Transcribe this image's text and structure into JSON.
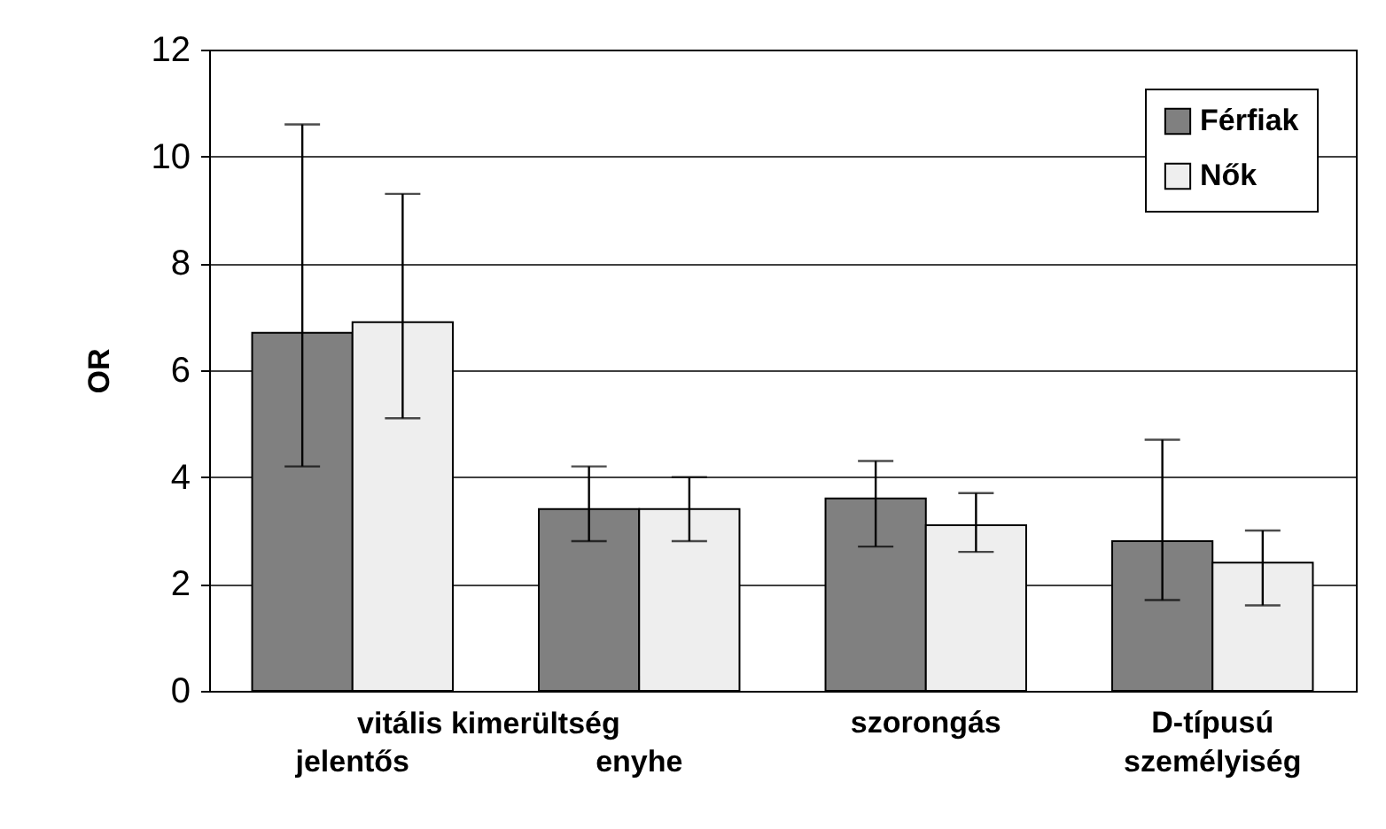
{
  "chart_data": {
    "type": "bar",
    "ylabel": "OR",
    "categories": [
      "jelentős",
      "enyhe",
      "szorongás",
      "D-típusú személyiség"
    ],
    "annotations": [
      "vitális kimerültség"
    ],
    "series": [
      {
        "name": "Férfiak",
        "color": "#808080",
        "values": [
          6.7,
          3.4,
          3.6,
          2.8
        ],
        "errors": [
          [
            4.2,
            10.6
          ],
          [
            2.8,
            4.2
          ],
          [
            2.7,
            4.3
          ],
          [
            1.7,
            4.7
          ]
        ]
      },
      {
        "name": "Nők",
        "color": "#eeeeee",
        "values": [
          6.9,
          3.4,
          3.1,
          2.4
        ],
        "errors": [
          [
            5.1,
            9.3
          ],
          [
            2.8,
            4.0
          ],
          [
            2.6,
            3.7
          ],
          [
            1.6,
            3.0
          ]
        ]
      }
    ],
    "ylim": [
      0,
      12
    ],
    "yticks": [
      0,
      2,
      4,
      6,
      8,
      10,
      12
    ],
    "grid": "y",
    "legend": "top right"
  }
}
